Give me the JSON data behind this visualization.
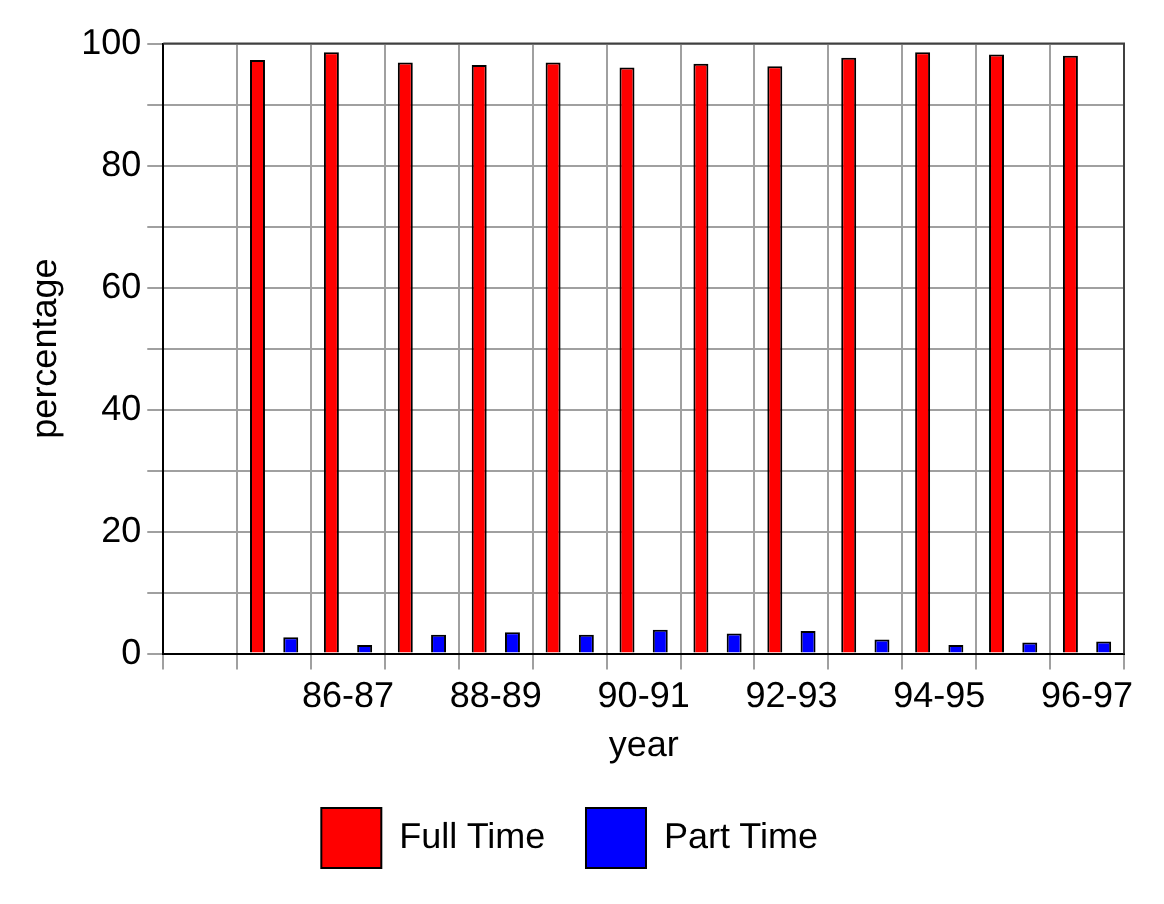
{
  "chart_data": {
    "type": "bar",
    "xlabel": "year",
    "ylabel": "percentage",
    "categories": [
      null,
      null,
      "86-87",
      null,
      "88-89",
      null,
      "90-91",
      null,
      "92-93",
      null,
      "94-95",
      null,
      "96-97"
    ],
    "series": [
      {
        "name": "Full Time",
        "color": "#ff0000",
        "values": [
          null,
          97.3,
          98.6,
          96.9,
          96.5,
          96.9,
          96.1,
          96.7,
          96.3,
          97.7,
          98.6,
          98.2,
          98.0
        ]
      },
      {
        "name": "Part Time",
        "color": "#0000ff",
        "values": [
          null,
          2.7,
          1.4,
          3.1,
          3.5,
          3.1,
          3.9,
          3.3,
          3.7,
          2.3,
          1.4,
          1.8,
          2.0
        ]
      }
    ],
    "ylim": [
      0,
      100
    ],
    "yticks": [
      0,
      {
        "value": 10,
        "label": null
      },
      20,
      {
        "value": 30,
        "label": null
      },
      40,
      {
        "value": 50,
        "label": null
      },
      60,
      {
        "value": 70,
        "label": null
      },
      80,
      {
        "value": 90,
        "label": null
      },
      100
    ],
    "grid": true,
    "legend": "bottom"
  }
}
